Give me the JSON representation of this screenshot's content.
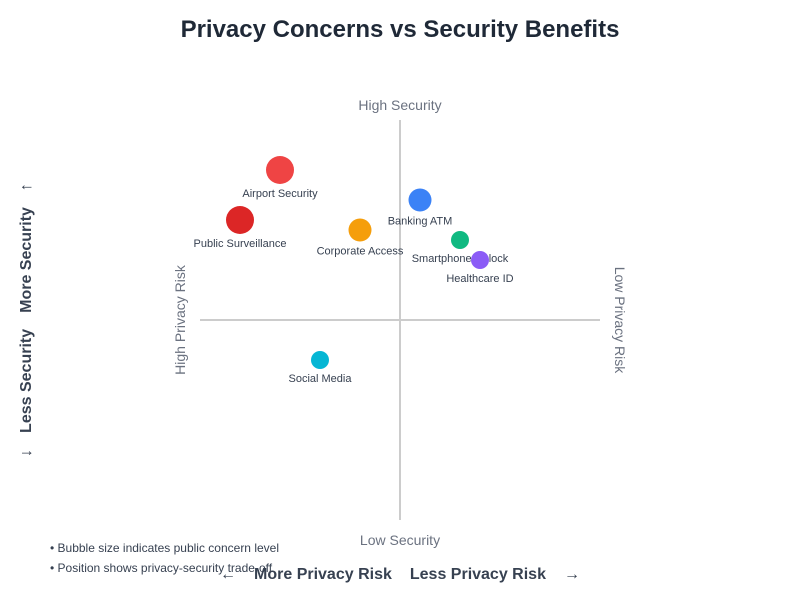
{
  "chart_data": {
    "type": "scatter",
    "title": "Privacy Concerns vs Security Benefits",
    "quadrant_labels": {
      "top": "High Security",
      "bottom": "Low Security",
      "left": "High Privacy Risk",
      "right": "Low Privacy Risk"
    },
    "y_axis_title": {
      "more": "More Security",
      "less": "Less Security",
      "arrow_up": "↑",
      "arrow_down": "↓"
    },
    "x_axis_title": {
      "more": "More Privacy Risk",
      "less": "Less Privacy Risk",
      "arrow_left": "←",
      "arrow_right": "→"
    },
    "xlim": [
      -10,
      10
    ],
    "ylim": [
      -10,
      10
    ],
    "points": [
      {
        "label": "Airport Security",
        "x": -6,
        "y": 7.5,
        "size": 4,
        "color": "#ef4444"
      },
      {
        "label": "Public Surveillance",
        "x": -8,
        "y": 5,
        "size": 4,
        "color": "#dc2626"
      },
      {
        "label": "Corporate Access",
        "x": -2,
        "y": 4.5,
        "size": 3,
        "color": "#f59e0b"
      },
      {
        "label": "Banking ATM",
        "x": 1,
        "y": 6,
        "size": 3,
        "color": "#3b82f6"
      },
      {
        "label": "Smartphone Unlock",
        "x": 3,
        "y": 4,
        "size": 2,
        "color": "#10b981"
      },
      {
        "label": "Healthcare ID",
        "x": 4,
        "y": 3,
        "size": 2,
        "color": "#8b5cf6"
      },
      {
        "label": "Social Media",
        "x": -4,
        "y": -2,
        "size": 2,
        "color": "#06b6d4"
      }
    ],
    "notes": [
      "• Bubble size indicates public concern level",
      "• Position shows privacy-security trade-off"
    ]
  }
}
